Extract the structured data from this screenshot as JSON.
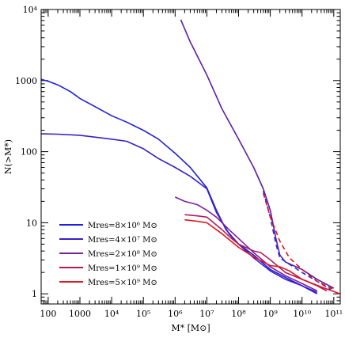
{
  "chart_data": {
    "type": "line",
    "xlabel": "M* [M⊙]",
    "ylabel": "N(>M*)",
    "xscale": "log",
    "yscale": "log",
    "xlim": [
      60,
      160000000000
    ],
    "ylim": [
      0.72,
      10000
    ],
    "x_ticks": [
      {
        "v": 100,
        "label": "100"
      },
      {
        "v": 1000,
        "label": "1000"
      },
      {
        "v": 10000,
        "label": "10⁴"
      },
      {
        "v": 100000,
        "label": "10⁵"
      },
      {
        "v": 1000000,
        "label": "10⁶"
      },
      {
        "v": 10000000,
        "label": "10⁷"
      },
      {
        "v": 100000000,
        "label": "10⁸"
      },
      {
        "v": 1000000000,
        "label": "10⁹"
      },
      {
        "v": 10000000000,
        "label": "10¹⁰"
      },
      {
        "v": 100000000000,
        "label": "10¹¹"
      }
    ],
    "y_ticks": [
      {
        "v": 1,
        "label": "1"
      },
      {
        "v": 10,
        "label": "10"
      },
      {
        "v": 100,
        "label": "100"
      },
      {
        "v": 1000,
        "label": "1000"
      },
      {
        "v": 10000,
        "label": "10⁴"
      }
    ],
    "legend_position": "bottom-left",
    "series": [
      {
        "name": "Mres=8×10⁶ M⊙",
        "color": "#1f1fdc",
        "dashed": false,
        "points": [
          [
            60,
            1040
          ],
          [
            100,
            980
          ],
          [
            200,
            870
          ],
          [
            500,
            700
          ],
          [
            1000,
            560
          ],
          [
            3000,
            430
          ],
          [
            10000,
            320
          ],
          [
            30000,
            260
          ],
          [
            100000,
            200
          ],
          [
            300000,
            150
          ],
          [
            1000000,
            95
          ],
          [
            3000000,
            60
          ],
          [
            10000000,
            31
          ],
          [
            20000000,
            15
          ],
          [
            40000000,
            8
          ],
          [
            100000000,
            5
          ],
          [
            300000000,
            3.5
          ],
          [
            1000000000,
            2.2
          ],
          [
            3000000000,
            1.7
          ],
          [
            10000000000,
            1.3
          ],
          [
            30000000000,
            1.0
          ]
        ]
      },
      {
        "name": "Mres=4×10⁷ M⊙",
        "color": "#3b1fc8",
        "dashed": false,
        "points": [
          [
            60,
            178
          ],
          [
            200,
            176
          ],
          [
            1000,
            170
          ],
          [
            10000,
            150
          ],
          [
            30000,
            140
          ],
          [
            100000,
            110
          ],
          [
            300000,
            80
          ],
          [
            1000000,
            60
          ],
          [
            3000000,
            45
          ],
          [
            10000000,
            30
          ],
          [
            20000000,
            14
          ],
          [
            50000000,
            7
          ],
          [
            100000000,
            5
          ],
          [
            300000000,
            3.2
          ],
          [
            1000000000,
            2.1
          ],
          [
            3000000000,
            1.6
          ],
          [
            10000000000,
            1.3
          ],
          [
            30000000000,
            1.05
          ]
        ]
      },
      {
        "name": "Mres=2×10⁸ M⊙",
        "color": "#7d1f9c",
        "dashed": false,
        "points": [
          [
            1000000,
            23
          ],
          [
            2000000,
            20
          ],
          [
            5000000,
            18
          ],
          [
            10000000,
            15
          ],
          [
            20000000,
            12
          ],
          [
            50000000,
            8
          ],
          [
            100000000,
            6
          ],
          [
            300000000,
            3.8
          ],
          [
            1000000000,
            2.4
          ],
          [
            3000000000,
            1.8
          ],
          [
            10000000000,
            1.4
          ],
          [
            30000000000,
            1.1
          ]
        ]
      },
      {
        "name": "Mres=1×10⁹ M⊙",
        "color": "#b41a5c",
        "dashed": false,
        "points": [
          [
            2000000,
            13
          ],
          [
            5000000,
            12.5
          ],
          [
            10000000,
            12
          ],
          [
            30000000,
            8
          ],
          [
            60000000,
            6
          ],
          [
            100000000,
            5
          ],
          [
            300000000,
            4
          ],
          [
            500000000,
            3.8
          ],
          [
            1000000000,
            3
          ],
          [
            3000000000,
            2
          ],
          [
            10000000000,
            1.6
          ],
          [
            30000000000,
            1.3
          ],
          [
            60000000000,
            1.1
          ]
        ]
      },
      {
        "name": "Mres=5×10⁹ M⊙",
        "color": "#e0141c",
        "dashed": false,
        "points": [
          [
            2000000,
            11
          ],
          [
            5000000,
            10.5
          ],
          [
            10000000,
            10
          ],
          [
            30000000,
            7
          ],
          [
            100000000,
            4.5
          ],
          [
            300000000,
            3.3
          ],
          [
            1000000000,
            2.5
          ],
          [
            2000000000,
            2.4
          ],
          [
            4000000000,
            2.1
          ],
          [
            10000000000,
            1.6
          ],
          [
            40000000000,
            1.25
          ],
          [
            160000000000,
            1.0
          ]
        ]
      },
      {
        "name": "",
        "color": "#5a1fa8",
        "dashed": false,
        "points": [
          [
            1500000,
            7200
          ],
          [
            3000000,
            3500
          ],
          [
            10000000,
            1200
          ],
          [
            30000000,
            400
          ],
          [
            100000000,
            150
          ],
          [
            300000000,
            60
          ],
          [
            600000000,
            30
          ],
          [
            1000000000,
            15
          ],
          [
            1500000000,
            6
          ],
          [
            2000000000,
            3.5
          ],
          [
            3000000000,
            2.8
          ],
          [
            10000000000,
            2.2
          ],
          [
            30000000000,
            1.6
          ],
          [
            100000000000,
            1.2
          ]
        ]
      },
      {
        "name": "",
        "color": "#2a2ad8",
        "dashed": true,
        "points": [
          [
            600000000,
            28
          ],
          [
            1000000000,
            12
          ],
          [
            1500000000,
            5
          ],
          [
            2000000000,
            3.2
          ],
          [
            4000000000,
            2.6
          ],
          [
            10000000000,
            2.0
          ],
          [
            30000000000,
            1.5
          ],
          [
            80000000000,
            1.15
          ]
        ]
      },
      {
        "name": "",
        "color": "#e0141c",
        "dashed": true,
        "points": [
          [
            600000000,
            26
          ],
          [
            1000000000,
            12
          ],
          [
            2000000000,
            5.5
          ],
          [
            4000000000,
            3.2
          ],
          [
            10000000000,
            2.2
          ],
          [
            30000000000,
            1.5
          ],
          [
            100000000000,
            1.15
          ]
        ]
      }
    ]
  }
}
